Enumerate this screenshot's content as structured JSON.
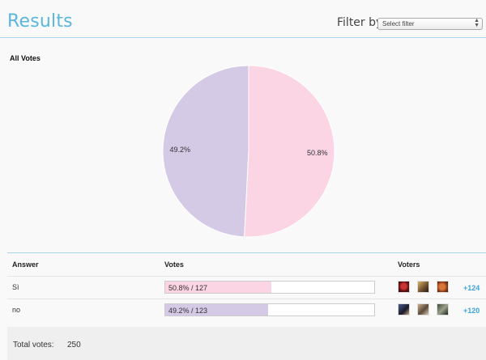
{
  "header": {
    "title": "Results",
    "filter_label": "Filter by:",
    "filter_placeholder": "Select filter"
  },
  "chart_data": {
    "type": "pie",
    "title": "All Votes",
    "series": [
      {
        "name": "no",
        "value": 49.2,
        "label": "49.2%",
        "color": "#d5cae6"
      },
      {
        "name": "Sì",
        "value": 50.8,
        "label": "50.8%",
        "color": "#fbd5e3"
      }
    ]
  },
  "table": {
    "columns": [
      "Answer",
      "Votes",
      "Voters"
    ],
    "rows": [
      {
        "answer": "Sì",
        "votes_text": "50.8% / 127",
        "fraction": 0.508,
        "bar_color": "#fbd5e3",
        "more": "+124"
      },
      {
        "answer": "no",
        "votes_text": "49.2% / 123",
        "fraction": 0.492,
        "bar_color": "#d5cae6",
        "more": "+120"
      }
    ]
  },
  "footer": {
    "total_label": "Total votes:",
    "total_value": "250"
  }
}
